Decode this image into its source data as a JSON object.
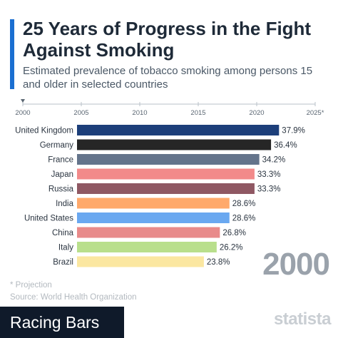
{
  "header": {
    "title": "25 Years of Progress in the Fight Against Smoking",
    "subtitle": "Estimated prevalence of tobacco smoking among persons 15 and older in selected countries"
  },
  "timeline": {
    "ticks": [
      "2000",
      "2005",
      "2010",
      "2015",
      "2020",
      "2025*"
    ],
    "current": "2000"
  },
  "chart_data": {
    "type": "bar",
    "orientation": "horizontal",
    "categories": [
      "United Kingdom",
      "Germany",
      "France",
      "Japan",
      "Russia",
      "India",
      "United States",
      "China",
      "Italy",
      "Brazil"
    ],
    "values": [
      37.9,
      36.4,
      34.2,
      33.3,
      33.3,
      28.6,
      28.6,
      26.8,
      26.2,
      23.8
    ],
    "value_labels": [
      "37.9%",
      "36.4%",
      "34.2%",
      "33.3%",
      "33.3%",
      "28.6%",
      "28.6%",
      "26.8%",
      "26.2%",
      "23.8%"
    ],
    "colors": [
      "#1d3f7a",
      "#262626",
      "#64748b",
      "#f28a8a",
      "#8f5863",
      "#ffa96b",
      "#6aa8f0",
      "#e88a8a",
      "#b9df8c",
      "#fbe7a1"
    ],
    "xlim": [
      0,
      40
    ],
    "title": "25 Years of Progress in the Fight Against Smoking",
    "grid": false
  },
  "footer": {
    "year": "2000",
    "projection_note": "* Projection",
    "source": "Source: World Health Organization",
    "badge": "Racing Bars",
    "brand": "statista"
  },
  "colors": {
    "accent": "#1a6fd1",
    "title": "#1e2a38",
    "badge_bg": "#0f1a2a"
  }
}
